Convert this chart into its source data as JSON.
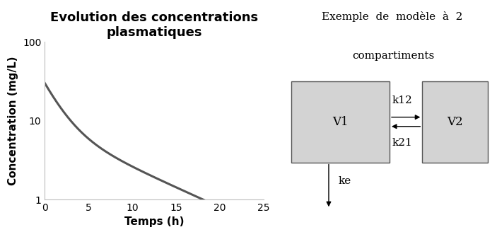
{
  "title": "Evolution des concentrations\nplasmatiques",
  "xlabel": "Temps (h)",
  "ylabel": "Concentration (mg/L)",
  "xlim": [
    0,
    25
  ],
  "ylim_log": [
    1,
    100
  ],
  "yticks": [
    1,
    10,
    100
  ],
  "xticks": [
    0,
    5,
    10,
    15,
    20,
    25
  ],
  "line_color": "#555555",
  "line_width": 2.2,
  "A": 22.0,
  "alpha": 0.55,
  "B": 8.0,
  "beta": 0.115,
  "title_fontsize": 13,
  "label_fontsize": 11,
  "tick_fontsize": 10,
  "bg_color": "#ffffff",
  "diagram_text_fontsize": 11,
  "diagram_title_line1": "Exemple  de  modèle  à  2",
  "diagram_title_line2": "compartiments",
  "box_color": "#d3d3d3",
  "box_edge_color": "#555555",
  "V1_label": "V1",
  "V2_label": "V2",
  "k12_label": "k12",
  "k21_label": "k21",
  "ke_label": "ke"
}
